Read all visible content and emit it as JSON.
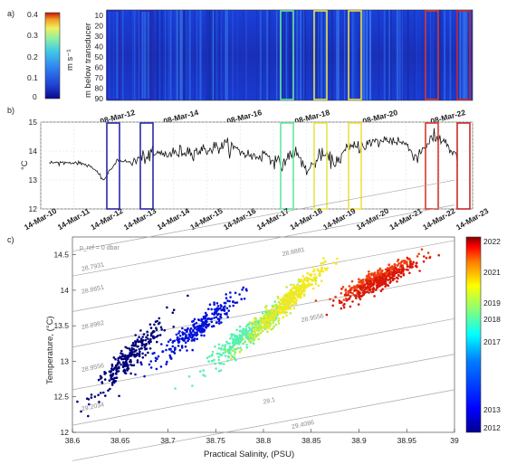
{
  "panel_letters": {
    "a": "a)",
    "b": "b)",
    "c": "c)"
  },
  "colors": {
    "speed_colormap": [
      "#0a0a8c",
      "#1f3fd0",
      "#2f7ff0",
      "#3fc8e8",
      "#8ff0a0",
      "#f0f060",
      "#f0a020",
      "#c81010"
    ],
    "jet": [
      "#00008f",
      "#0000ff",
      "#0080ff",
      "#00ffff",
      "#80ff80",
      "#ffff00",
      "#ff8000",
      "#ff0000",
      "#800000"
    ],
    "time_series_line": "#111111",
    "box_colors": {
      "2012": "#2a2aa8",
      "2013": "#2a2aa8",
      "2017": "#66e6a0",
      "2018": "#e6e64a",
      "2019": "#f0e040",
      "2021": "#d83a2a",
      "2022": "#c82a2a"
    },
    "isopycnal": "#a8a8a8"
  },
  "chart_data": [
    {
      "id": "panel-a",
      "type": "heatmap",
      "xlabel": "",
      "ylabel": "m below transducer",
      "y_ticks": [
        "10",
        "20",
        "30",
        "40",
        "50",
        "60",
        "70",
        "80",
        "90"
      ],
      "x_ticks": [
        "08-Mar-12",
        "08-Mar-14",
        "08-Mar-16",
        "08-Mar-18",
        "08-Mar-20",
        "08-Mar-22"
      ],
      "colorbar": {
        "label": "m s⁻¹",
        "ticks": [
          "0.4",
          "0.3",
          "0.2",
          "0.1",
          "0"
        ],
        "range": [
          0,
          0.4
        ]
      }
    },
    {
      "id": "panel-b",
      "type": "line",
      "xlabel": "",
      "ylabel": "°C",
      "ylim": [
        12,
        15
      ],
      "y_ticks": [
        "15",
        "14",
        "13",
        "12"
      ],
      "x_ticks": [
        "14-Mar-10",
        "14-Mar-11",
        "14-Mar-12",
        "14-Mar-13",
        "14-Mar-14",
        "14-Mar-15",
        "14-Mar-16",
        "14-Mar-17",
        "14-Mar-18",
        "14-Mar-19",
        "14-Mar-20",
        "14-Mar-21",
        "14-Mar-22",
        "14-Mar-23"
      ],
      "series": [
        {
          "values_approx": [
            13.6,
            13.6,
            13.6,
            13.5,
            13.0,
            13.7,
            13.6,
            13.8,
            13.9,
            13.9,
            14.0,
            14.0,
            14.1,
            14.2,
            14.0,
            13.8,
            13.9,
            13.5,
            14.0,
            13.3,
            13.9,
            13.6,
            14.1,
            14.2,
            14.3,
            14.4,
            14.3,
            13.8,
            14.4,
            14.4,
            13.7
          ]
        }
      ],
      "boxes": [
        {
          "year": "2012",
          "color_key": "2012"
        },
        {
          "year": "2013",
          "color_key": "2013"
        },
        {
          "year": "2017",
          "color_key": "2017"
        },
        {
          "year": "2018",
          "color_key": "2018"
        },
        {
          "year": "2019",
          "color_key": "2019"
        },
        {
          "year": "2021",
          "color_key": "2021"
        },
        {
          "year": "2022",
          "color_key": "2022"
        }
      ]
    },
    {
      "id": "panel-c",
      "type": "scatter",
      "xlabel": "Practical Salinity, (PSU)",
      "ylabel": "Temperature, (°C)",
      "xlim": [
        38.6,
        39.0
      ],
      "ylim": [
        12.0,
        14.75
      ],
      "x_ticks": [
        "38.6",
        "38.65",
        "38.7",
        "38.75",
        "38.8",
        "38.85",
        "38.9",
        "38.95",
        "39"
      ],
      "y_ticks": [
        "14.5",
        "14",
        "13.5",
        "13",
        "12.5",
        "12"
      ],
      "pressure_ref": "p_ref = 0 dbar",
      "isopycnal_labels": [
        "28.7931",
        "28.8651",
        "28.8982",
        "28.9556",
        "29.2034",
        "29.1",
        "29.4086",
        "28.8881",
        "28.9556"
      ],
      "colorbar": {
        "ticks": [
          "2022",
          "2021",
          "2019",
          "2018",
          "2017",
          "2013",
          "2012"
        ]
      },
      "clusters": [
        {
          "year": 2012,
          "s_center": 38.66,
          "t_center": 13.05,
          "s_spread": 0.035,
          "t_spread": 0.28
        },
        {
          "year": 2013,
          "s_center": 38.73,
          "t_center": 13.45,
          "s_spread": 0.04,
          "t_spread": 0.25
        },
        {
          "year": 2017,
          "s_center": 38.78,
          "t_center": 13.35,
          "s_spread": 0.035,
          "t_spread": 0.22
        },
        {
          "year": 2018,
          "s_center": 38.81,
          "t_center": 13.65,
          "s_spread": 0.03,
          "t_spread": 0.22
        },
        {
          "year": 2019,
          "s_center": 38.83,
          "t_center": 13.9,
          "s_spread": 0.03,
          "t_spread": 0.22
        },
        {
          "year": 2021,
          "s_center": 38.92,
          "t_center": 14.2,
          "s_spread": 0.035,
          "t_spread": 0.15
        },
        {
          "year": 2022,
          "s_center": 38.92,
          "t_center": 14.1,
          "s_spread": 0.035,
          "t_spread": 0.15
        }
      ]
    }
  ]
}
